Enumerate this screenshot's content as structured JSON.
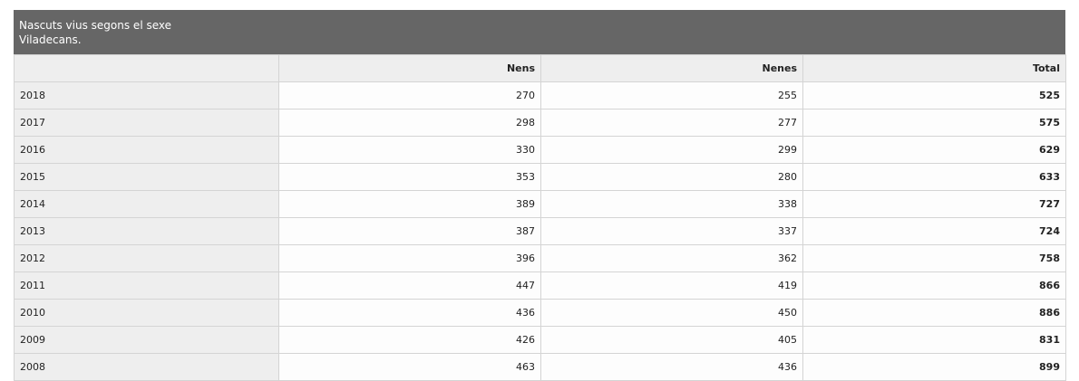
{
  "caption": {
    "line1": "Nascuts vius segons el sexe",
    "line2": "Viladecans."
  },
  "columns": [
    "",
    "Nens",
    "Nenes",
    "Total"
  ],
  "rows": [
    {
      "year": "2018",
      "nens": "270",
      "nenes": "255",
      "total": "525"
    },
    {
      "year": "2017",
      "nens": "298",
      "nenes": "277",
      "total": "575"
    },
    {
      "year": "2016",
      "nens": "330",
      "nenes": "299",
      "total": "629"
    },
    {
      "year": "2015",
      "nens": "353",
      "nenes": "280",
      "total": "633"
    },
    {
      "year": "2014",
      "nens": "389",
      "nenes": "338",
      "total": "727"
    },
    {
      "year": "2013",
      "nens": "387",
      "nenes": "337",
      "total": "724"
    },
    {
      "year": "2012",
      "nens": "396",
      "nenes": "362",
      "total": "758"
    },
    {
      "year": "2011",
      "nens": "447",
      "nenes": "419",
      "total": "866"
    },
    {
      "year": "2010",
      "nens": "436",
      "nenes": "450",
      "total": "886"
    },
    {
      "year": "2009",
      "nens": "426",
      "nenes": "405",
      "total": "831"
    },
    {
      "year": "2008",
      "nens": "463",
      "nenes": "436",
      "total": "899"
    }
  ],
  "colors": {
    "caption_bg": "#666666",
    "header_bg": "#eeeeee",
    "border": "#d4d4d4"
  }
}
